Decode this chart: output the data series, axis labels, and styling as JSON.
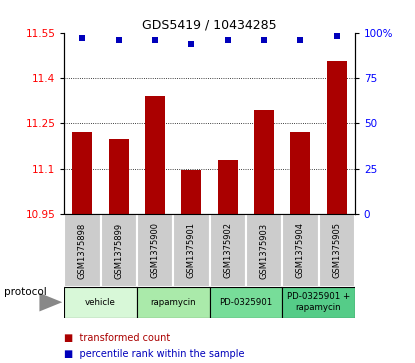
{
  "title": "GDS5419 / 10434285",
  "samples": [
    "GSM1375898",
    "GSM1375899",
    "GSM1375900",
    "GSM1375901",
    "GSM1375902",
    "GSM1375903",
    "GSM1375904",
    "GSM1375905"
  ],
  "bar_values": [
    11.22,
    11.2,
    11.34,
    11.095,
    11.13,
    11.295,
    11.22,
    11.455
  ],
  "percentile_values": [
    97,
    96,
    96,
    94,
    96,
    96,
    96,
    98
  ],
  "ymin": 10.95,
  "ymax": 11.55,
  "yticks_left": [
    10.95,
    11.1,
    11.25,
    11.4,
    11.55
  ],
  "yticks_right": [
    0,
    25,
    50,
    75,
    100
  ],
  "bar_color": "#aa0000",
  "dot_color": "#0000bb",
  "grid_yticks": [
    11.1,
    11.25,
    11.4
  ],
  "protocols": [
    {
      "label": "vehicle",
      "span": [
        0,
        2
      ],
      "color": "#d8f8d8"
    },
    {
      "label": "rapamycin",
      "span": [
        2,
        4
      ],
      "color": "#aaeaaa"
    },
    {
      "label": "PD-0325901",
      "span": [
        4,
        6
      ],
      "color": "#77dd99"
    },
    {
      "label": "PD-0325901 +\nrapamycin",
      "span": [
        6,
        8
      ],
      "color": "#55cc88"
    }
  ],
  "sample_bg_color": "#cccccc",
  "sample_border_color": "#ffffff",
  "protocol_label": "protocol",
  "legend_bar_label": "transformed count",
  "legend_dot_label": "percentile rank within the sample",
  "legend_bar_color": "#aa0000",
  "legend_dot_color": "#0000bb"
}
